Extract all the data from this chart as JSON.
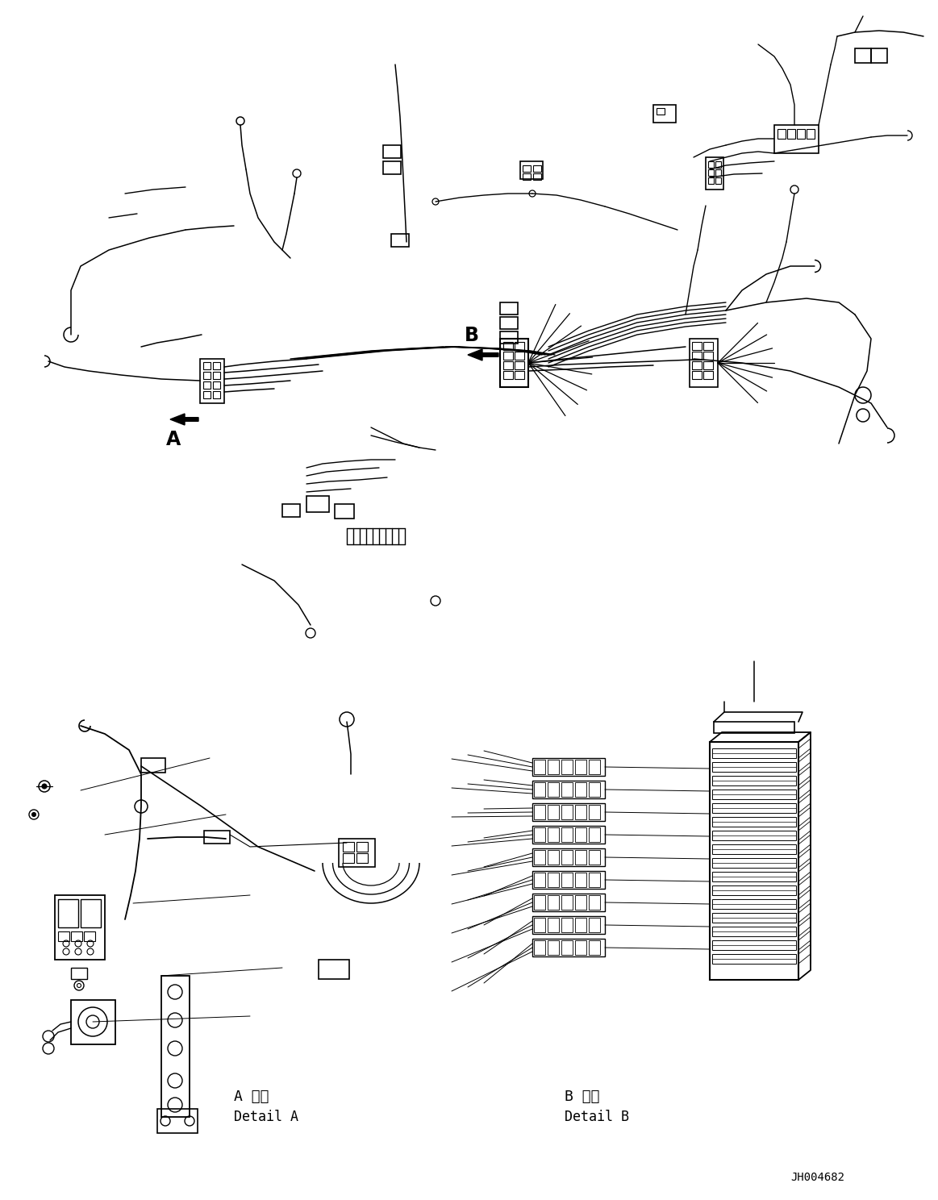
{
  "background_color": "#ffffff",
  "line_color": "#000000",
  "part_number": "JH004682",
  "detail_A_japanese": "A 詳細",
  "detail_A_english": "Detail A",
  "detail_B_japanese": "B 詳細",
  "detail_B_english": "Detail B",
  "figsize": [
    11.63,
    14.88
  ],
  "dpi": 100
}
